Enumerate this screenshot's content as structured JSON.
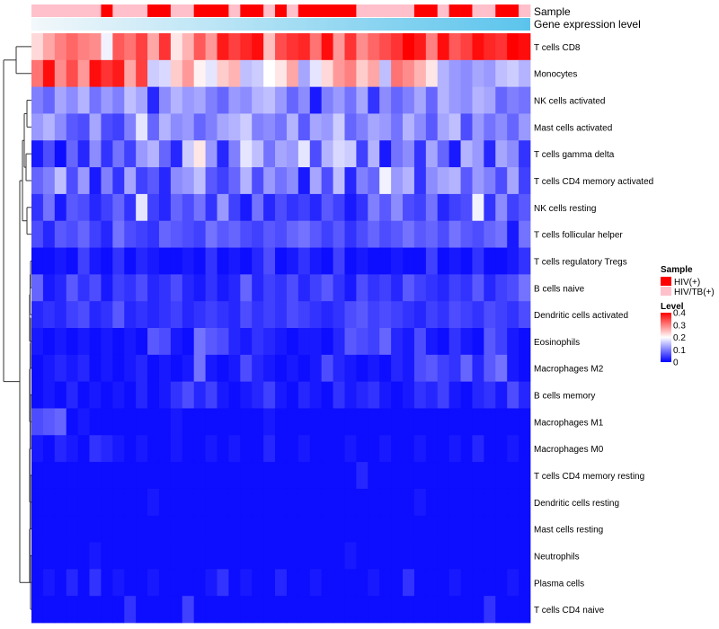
{
  "chart_data": {
    "type": "heatmap",
    "title": "",
    "annotation_labels": {
      "sample": "Sample",
      "gene_expression": "Gene expression level"
    },
    "rows": [
      "T cells CD8",
      "Monocytes",
      "NK cells activated",
      "Mast cells activated",
      "T cells gamma delta",
      "T cells CD4 memory activated",
      "NK cells resting",
      "T cells follicular helper",
      "T cells regulatory  Tregs",
      "B cells naive",
      "Dendritic cells activated",
      "Eosinophils",
      "Macrophages M2",
      "B cells memory",
      "Macrophages M1",
      "Macrophages M0",
      "T cells CD4 memory resting",
      "Dendritic cells resting",
      "Mast cells resting",
      "Neutrophils",
      "Plasma cells",
      "T cells CD4 naive"
    ],
    "columns": 43,
    "sample_group": [
      "HIV/TB(+)",
      "HIV/TB(+)",
      "HIV/TB(+)",
      "HIV/TB(+)",
      "HIV/TB(+)",
      "HIV/TB(+)",
      "HIV(+)",
      "HIV/TB(+)",
      "HIV/TB(+)",
      "HIV/TB(+)",
      "HIV(+)",
      "HIV(+)",
      "HIV/TB(+)",
      "HIV/TB(+)",
      "HIV(+)",
      "HIV(+)",
      "HIV(+)",
      "HIV/TB(+)",
      "HIV(+)",
      "HIV(+)",
      "HIV/TB(+)",
      "HIV(+)",
      "HIV/TB(+)",
      "HIV(+)",
      "HIV(+)",
      "HIV(+)",
      "HIV(+)",
      "HIV(+)",
      "HIV/TB(+)",
      "HIV/TB(+)",
      "HIV/TB(+)",
      "HIV/TB(+)",
      "HIV/TB(+)",
      "HIV(+)",
      "HIV(+)",
      "HIV/TB(+)",
      "HIV(+)",
      "HIV(+)",
      "HIV/TB(+)",
      "HIV/TB(+)",
      "HIV(+)",
      "HIV(+)",
      "HIV/TB(+)"
    ],
    "expression_gradient": {
      "from": "#f3f8fb",
      "to": "#5bc4ec"
    },
    "values": [
      [
        0.23,
        0.27,
        0.3,
        0.32,
        0.3,
        0.29,
        0.19,
        0.33,
        0.31,
        0.35,
        0.27,
        0.36,
        0.22,
        0.26,
        0.33,
        0.28,
        0.38,
        0.35,
        0.37,
        0.39,
        0.25,
        0.34,
        0.36,
        0.37,
        0.31,
        0.39,
        0.28,
        0.36,
        0.29,
        0.32,
        0.34,
        0.36,
        0.4,
        0.38,
        0.3,
        0.39,
        0.33,
        0.35,
        0.39,
        0.37,
        0.36,
        0.4,
        0.39
      ],
      [
        0.31,
        0.39,
        0.29,
        0.34,
        0.28,
        0.39,
        0.36,
        0.38,
        0.27,
        0.35,
        0.16,
        0.17,
        0.24,
        0.28,
        0.21,
        0.18,
        0.24,
        0.26,
        0.15,
        0.16,
        0.2,
        0.22,
        0.27,
        0.13,
        0.18,
        0.23,
        0.28,
        0.3,
        0.24,
        0.27,
        0.15,
        0.31,
        0.29,
        0.26,
        0.22,
        0.14,
        0.12,
        0.11,
        0.13,
        0.12,
        0.15,
        0.16,
        0.14
      ],
      [
        0.1,
        0.08,
        0.13,
        0.11,
        0.14,
        0.09,
        0.12,
        0.1,
        0.15,
        0.13,
        0.03,
        0.11,
        0.14,
        0.12,
        0.13,
        0.1,
        0.08,
        0.12,
        0.11,
        0.14,
        0.15,
        0.12,
        0.08,
        0.11,
        0.02,
        0.1,
        0.12,
        0.09,
        0.13,
        0.04,
        0.11,
        0.08,
        0.1,
        0.13,
        0.08,
        0.14,
        0.12,
        0.11,
        0.14,
        0.13,
        0.08,
        0.1,
        0.09
      ],
      [
        0.12,
        0.14,
        0.11,
        0.07,
        0.06,
        0.13,
        0.06,
        0.05,
        0.1,
        0.18,
        0.08,
        0.14,
        0.11,
        0.12,
        0.08,
        0.1,
        0.13,
        0.14,
        0.16,
        0.1,
        0.11,
        0.09,
        0.14,
        0.07,
        0.13,
        0.12,
        0.16,
        0.08,
        0.1,
        0.13,
        0.12,
        0.09,
        0.14,
        0.11,
        0.07,
        0.13,
        0.15,
        0.06,
        0.12,
        0.09,
        0.11,
        0.08,
        0.12
      ],
      [
        0.02,
        0.06,
        0.01,
        0.08,
        0.03,
        0.11,
        0.04,
        0.09,
        0.05,
        0.12,
        0.14,
        0.08,
        0.03,
        0.16,
        0.22,
        0.12,
        0.03,
        0.1,
        0.18,
        0.15,
        0.09,
        0.13,
        0.12,
        0.18,
        0.06,
        0.14,
        0.17,
        0.16,
        0.05,
        0.14,
        0.02,
        0.09,
        0.11,
        0.04,
        0.13,
        0.08,
        0.02,
        0.14,
        0.12,
        0.03,
        0.13,
        0.11,
        0.04
      ],
      [
        0.08,
        0.1,
        0.15,
        0.06,
        0.12,
        0.02,
        0.1,
        0.04,
        0.13,
        0.05,
        0.07,
        0.03,
        0.11,
        0.12,
        0.15,
        0.07,
        0.05,
        0.08,
        0.14,
        0.06,
        0.12,
        0.09,
        0.11,
        0.02,
        0.13,
        0.06,
        0.15,
        0.03,
        0.1,
        0.08,
        0.19,
        0.12,
        0.14,
        0.04,
        0.11,
        0.13,
        0.14,
        0.07,
        0.12,
        0.1,
        0.06,
        0.13,
        0.05
      ],
      [
        0.04,
        0.09,
        0.02,
        0.07,
        0.06,
        0.03,
        0.05,
        0.08,
        0.04,
        0.18,
        0.05,
        0.03,
        0.08,
        0.06,
        0.09,
        0.04,
        0.12,
        0.05,
        0.02,
        0.09,
        0.03,
        0.06,
        0.04,
        0.05,
        0.03,
        0.07,
        0.05,
        0.02,
        0.04,
        0.1,
        0.07,
        0.11,
        0.06,
        0.05,
        0.09,
        0.03,
        0.05,
        0.06,
        0.19,
        0.04,
        0.11,
        0.05,
        0.07
      ],
      [
        0.06,
        0.03,
        0.07,
        0.06,
        0.08,
        0.05,
        0.03,
        0.09,
        0.06,
        0.05,
        0.04,
        0.08,
        0.07,
        0.06,
        0.05,
        0.09,
        0.07,
        0.08,
        0.06,
        0.05,
        0.07,
        0.06,
        0.08,
        0.09,
        0.07,
        0.05,
        0.07,
        0.04,
        0.06,
        0.08,
        0.06,
        0.07,
        0.09,
        0.07,
        0.08,
        0.06,
        0.09,
        0.07,
        0.06,
        0.08,
        0.09,
        0.02,
        0.09
      ],
      [
        0.01,
        0.01,
        0.02,
        0.01,
        0.05,
        0.02,
        0.01,
        0.04,
        0.01,
        0.03,
        0.02,
        0.01,
        0.01,
        0.02,
        0.01,
        0.04,
        0.01,
        0.02,
        0.01,
        0.03,
        0.06,
        0.01,
        0.02,
        0.04,
        0.02,
        0.01,
        0.05,
        0.01,
        0.02,
        0.01,
        0.01,
        0.02,
        0.01,
        0.01,
        0.05,
        0.01,
        0.02,
        0.01,
        0.04,
        0.01,
        0.01,
        0.02,
        0.04
      ],
      [
        0.08,
        0.02,
        0.03,
        0.07,
        0.04,
        0.06,
        0.02,
        0.05,
        0.04,
        0.06,
        0.03,
        0.04,
        0.06,
        0.03,
        0.02,
        0.04,
        0.02,
        0.03,
        0.08,
        0.03,
        0.05,
        0.04,
        0.06,
        0.03,
        0.05,
        0.07,
        0.04,
        0.02,
        0.06,
        0.04,
        0.05,
        0.03,
        0.07,
        0.05,
        0.04,
        0.03,
        0.05,
        0.04,
        0.07,
        0.03,
        0.05,
        0.06,
        0.09
      ],
      [
        0.03,
        0.04,
        0.03,
        0.05,
        0.06,
        0.03,
        0.04,
        0.07,
        0.03,
        0.04,
        0.03,
        0.04,
        0.05,
        0.03,
        0.04,
        0.05,
        0.04,
        0.03,
        0.06,
        0.04,
        0.05,
        0.04,
        0.06,
        0.05,
        0.04,
        0.03,
        0.04,
        0.06,
        0.07,
        0.05,
        0.06,
        0.05,
        0.04,
        0.03,
        0.05,
        0.04,
        0.06,
        0.05,
        0.04,
        0.06,
        0.05,
        0.04,
        0.06
      ],
      [
        0.02,
        0.01,
        0.02,
        0.01,
        0.02,
        0.01,
        0.02,
        0.01,
        0.02,
        0.01,
        0.07,
        0.06,
        0.02,
        0.01,
        0.09,
        0.07,
        0.06,
        0.03,
        0.02,
        0.04,
        0.03,
        0.02,
        0.01,
        0.02,
        0.02,
        0.01,
        0.03,
        0.07,
        0.06,
        0.05,
        0.08,
        0.03,
        0.02,
        0.06,
        0.02,
        0.01,
        0.04,
        0.02,
        0.01,
        0.07,
        0.05,
        0.02,
        0.01
      ],
      [
        0.01,
        0.02,
        0.03,
        0.02,
        0.03,
        0.01,
        0.02,
        0.01,
        0.02,
        0.03,
        0.01,
        0.02,
        0.01,
        0.02,
        0.09,
        0.02,
        0.01,
        0.02,
        0.06,
        0.03,
        0.02,
        0.01,
        0.02,
        0.01,
        0.02,
        0.06,
        0.03,
        0.02,
        0.01,
        0.02,
        0.01,
        0.03,
        0.02,
        0.06,
        0.07,
        0.05,
        0.04,
        0.08,
        0.03,
        0.07,
        0.09,
        0.02,
        0.01
      ],
      [
        0.01,
        0.02,
        0.01,
        0.03,
        0.01,
        0.02,
        0.01,
        0.02,
        0.01,
        0.03,
        0.01,
        0.02,
        0.04,
        0.06,
        0.03,
        0.05,
        0.02,
        0.01,
        0.02,
        0.03,
        0.05,
        0.02,
        0.01,
        0.03,
        0.02,
        0.01,
        0.04,
        0.02,
        0.03,
        0.04,
        0.02,
        0.01,
        0.02,
        0.04,
        0.03,
        0.05,
        0.02,
        0.01,
        0.03,
        0.04,
        0.02,
        0.06,
        0.03
      ],
      [
        0.06,
        0.07,
        0.08,
        0.01,
        0.02,
        0.01,
        0.01,
        0.01,
        0.01,
        0.01,
        0.01,
        0.01,
        0.02,
        0.01,
        0.01,
        0.01,
        0.01,
        0.01,
        0.01,
        0.01,
        0.02,
        0.01,
        0.01,
        0.01,
        0.01,
        0.01,
        0.01,
        0.01,
        0.01,
        0.01,
        0.01,
        0.01,
        0.01,
        0.01,
        0.01,
        0.01,
        0.01,
        0.01,
        0.01,
        0.01,
        0.01,
        0.01,
        0.01
      ],
      [
        0.02,
        0.01,
        0.03,
        0.02,
        0.01,
        0.04,
        0.03,
        0.02,
        0.01,
        0.02,
        0.01,
        0.01,
        0.02,
        0.01,
        0.01,
        0.02,
        0.01,
        0.02,
        0.01,
        0.01,
        0.03,
        0.01,
        0.01,
        0.02,
        0.01,
        0.01,
        0.01,
        0.02,
        0.01,
        0.01,
        0.02,
        0.01,
        0.01,
        0.02,
        0.01,
        0.01,
        0.02,
        0.01,
        0.03,
        0.01,
        0.01,
        0.02,
        0.01
      ],
      [
        0.01,
        0.01,
        0.01,
        0.01,
        0.01,
        0.01,
        0.01,
        0.01,
        0.01,
        0.01,
        0.01,
        0.01,
        0.01,
        0.01,
        0.01,
        0.01,
        0.01,
        0.01,
        0.01,
        0.01,
        0.01,
        0.01,
        0.01,
        0.01,
        0.01,
        0.01,
        0.01,
        0.01,
        0.03,
        0.01,
        0.01,
        0.01,
        0.01,
        0.01,
        0.01,
        0.01,
        0.01,
        0.01,
        0.01,
        0.01,
        0.01,
        0.01,
        0.01
      ],
      [
        0.01,
        0.01,
        0.01,
        0.01,
        0.01,
        0.01,
        0.01,
        0.01,
        0.01,
        0.01,
        0.02,
        0.01,
        0.01,
        0.01,
        0.01,
        0.01,
        0.01,
        0.01,
        0.01,
        0.01,
        0.01,
        0.01,
        0.01,
        0.01,
        0.01,
        0.01,
        0.01,
        0.01,
        0.01,
        0.01,
        0.01,
        0.01,
        0.01,
        0.02,
        0.01,
        0.01,
        0.01,
        0.01,
        0.01,
        0.01,
        0.01,
        0.01,
        0.01
      ],
      [
        0.01,
        0.01,
        0.01,
        0.01,
        0.01,
        0.01,
        0.01,
        0.01,
        0.01,
        0.01,
        0.01,
        0.01,
        0.01,
        0.01,
        0.01,
        0.01,
        0.01,
        0.01,
        0.01,
        0.01,
        0.01,
        0.01,
        0.01,
        0.01,
        0.01,
        0.01,
        0.01,
        0.01,
        0.01,
        0.01,
        0.01,
        0.01,
        0.01,
        0.01,
        0.01,
        0.01,
        0.01,
        0.01,
        0.01,
        0.01,
        0.01,
        0.01,
        0.01
      ],
      [
        0.01,
        0.01,
        0.01,
        0.01,
        0.01,
        0.02,
        0.01,
        0.01,
        0.01,
        0.01,
        0.01,
        0.01,
        0.01,
        0.01,
        0.01,
        0.01,
        0.01,
        0.01,
        0.01,
        0.01,
        0.01,
        0.01,
        0.01,
        0.01,
        0.01,
        0.01,
        0.01,
        0.02,
        0.01,
        0.01,
        0.01,
        0.01,
        0.01,
        0.01,
        0.01,
        0.01,
        0.01,
        0.01,
        0.01,
        0.01,
        0.01,
        0.01,
        0.01
      ],
      [
        0.01,
        0.02,
        0.01,
        0.03,
        0.01,
        0.04,
        0.01,
        0.02,
        0.01,
        0.01,
        0.02,
        0.01,
        0.01,
        0.01,
        0.01,
        0.02,
        0.04,
        0.01,
        0.02,
        0.01,
        0.01,
        0.03,
        0.01,
        0.01,
        0.02,
        0.01,
        0.01,
        0.01,
        0.01,
        0.02,
        0.01,
        0.01,
        0.04,
        0.01,
        0.01,
        0.01,
        0.02,
        0.01,
        0.01,
        0.01,
        0.01,
        0.02,
        0.01
      ],
      [
        0.01,
        0.01,
        0.01,
        0.01,
        0.01,
        0.01,
        0.01,
        0.01,
        0.04,
        0.01,
        0.01,
        0.01,
        0.01,
        0.05,
        0.01,
        0.01,
        0.01,
        0.01,
        0.01,
        0.01,
        0.01,
        0.01,
        0.01,
        0.01,
        0.01,
        0.01,
        0.01,
        0.01,
        0.01,
        0.01,
        0.01,
        0.01,
        0.01,
        0.01,
        0.01,
        0.01,
        0.01,
        0.01,
        0.01,
        0.04,
        0.01,
        0.01,
        0.01
      ]
    ],
    "color_scale": {
      "low": "#0000ff",
      "mid": "#ffffff",
      "high": "#ff0000",
      "min": 0,
      "mid_value": 0.2,
      "max": 0.4
    },
    "legend": {
      "sample_title": "Sample",
      "sample_items": [
        {
          "label": "HIV(+)",
          "color": "#ff0000"
        },
        {
          "label": "HIV/TB(+)",
          "color": "#ffc0cb"
        }
      ],
      "level_title": "Level",
      "level_ticks": [
        0.4,
        0.3,
        0.2,
        0.1,
        0
      ],
      "placement": "right"
    }
  }
}
